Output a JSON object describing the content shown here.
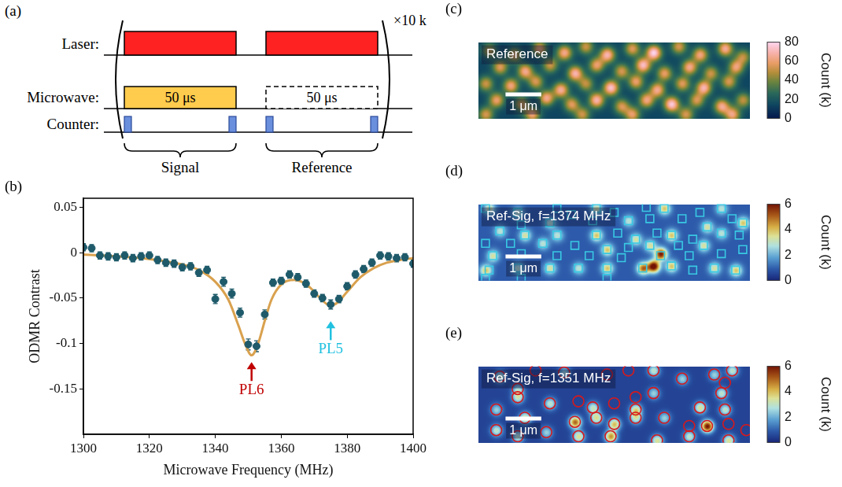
{
  "sequence": {
    "panel": "(a)",
    "rows": [
      "Laser:",
      "Microwave:",
      "Counter:"
    ],
    "pulse_labels": [
      "50 μs",
      "50 μs"
    ],
    "repeat": "×10 k",
    "windows": [
      "Signal",
      "Reference"
    ]
  },
  "chart_data": [
    {
      "panel": "(b)",
      "type": "scatter",
      "x_label": "Microwave Frequency (MHz)",
      "y_label": "ODMR Contrast",
      "xlim": [
        1300,
        1400
      ],
      "xticks": [
        1300,
        1320,
        1340,
        1360,
        1380,
        1400
      ],
      "ylim": [
        -0.2,
        0.06
      ],
      "yticks": [
        -0.15,
        -0.1,
        -0.05,
        0,
        0.05
      ],
      "grid": false,
      "series": [
        {
          "type": "scatter",
          "marker": "circle",
          "color": "#1e5a6a",
          "x": [
            1300,
            1302.5,
            1305,
            1307.5,
            1310,
            1312.5,
            1315,
            1317.5,
            1320,
            1322.5,
            1325,
            1327.5,
            1330,
            1332.5,
            1335,
            1337.5,
            1340,
            1342.5,
            1345,
            1347.5,
            1350,
            1352.5,
            1355,
            1357.5,
            1360,
            1362.5,
            1365,
            1367.5,
            1370,
            1372.5,
            1375,
            1377.5,
            1380,
            1382.5,
            1385,
            1387.5,
            1390,
            1392.5,
            1395,
            1397.5,
            1400
          ],
          "values": [
            0.006,
            0.005,
            -0.003,
            -0.004,
            -0.005,
            -0.003,
            -0.006,
            -0.004,
            -0.003,
            -0.008,
            -0.011,
            -0.012,
            -0.016,
            -0.015,
            -0.022,
            -0.019,
            -0.051,
            -0.032,
            -0.045,
            -0.066,
            -0.101,
            -0.103,
            -0.068,
            -0.033,
            -0.031,
            -0.024,
            -0.027,
            -0.034,
            -0.045,
            -0.05,
            -0.057,
            -0.051,
            -0.037,
            -0.024,
            -0.018,
            -0.011,
            -0.003,
            -0.004,
            -0.006,
            -0.005,
            -0.012
          ],
          "error": [
            0.004,
            0.004,
            0.004,
            0.004,
            0.004,
            0.004,
            0.004,
            0.004,
            0.004,
            0.004,
            0.004,
            0.004,
            0.004,
            0.004,
            0.004,
            0.004,
            0.005,
            0.005,
            0.005,
            0.005,
            0.006,
            0.006,
            0.005,
            0.004,
            0.004,
            0.004,
            0.004,
            0.004,
            0.004,
            0.004,
            0.005,
            0.004,
            0.004,
            0.004,
            0.004,
            0.004,
            0.004,
            0.004,
            0.004,
            0.004,
            0.004
          ]
        },
        {
          "type": "line",
          "line_style": "solid",
          "color": "#d9a14e",
          "x": [
            1300,
            1310,
            1320,
            1330,
            1335,
            1340,
            1344,
            1347,
            1349,
            1351,
            1353,
            1355,
            1357,
            1360,
            1364,
            1368,
            1371,
            1374,
            1375,
            1377,
            1380,
            1384,
            1388,
            1392,
            1396,
            1400
          ],
          "values": [
            -0.002,
            -0.004,
            -0.007,
            -0.013,
            -0.019,
            -0.032,
            -0.052,
            -0.08,
            -0.1,
            -0.113,
            -0.1,
            -0.075,
            -0.052,
            -0.035,
            -0.03,
            -0.036,
            -0.047,
            -0.057,
            -0.058,
            -0.055,
            -0.043,
            -0.027,
            -0.017,
            -0.011,
            -0.008,
            -0.006
          ]
        }
      ],
      "annotations": [
        {
          "text": "PL6",
          "x": 1351,
          "y": -0.143,
          "color": "#c00000"
        },
        {
          "text": "PL5",
          "x": 1375,
          "y": -0.098,
          "color": "#22c1e0"
        }
      ]
    },
    {
      "panel": "(c)",
      "type": "heatmap",
      "title": "Reference",
      "tick_labels": false,
      "xlim": [
        0,
        7.6
      ],
      "ylim": [
        0,
        3.7
      ],
      "scale_bar": {
        "length": 1,
        "label": "1 μm"
      },
      "background": 14,
      "spots": [
        [
          0.3,
          3.3,
          35
        ],
        [
          1.0,
          3.1,
          40
        ],
        [
          1.7,
          3.4,
          45
        ],
        [
          2.4,
          3.2,
          50
        ],
        [
          3.0,
          3.5,
          38
        ],
        [
          3.6,
          3.1,
          55
        ],
        [
          4.3,
          3.4,
          42
        ],
        [
          4.9,
          3.2,
          65
        ],
        [
          5.6,
          3.5,
          40
        ],
        [
          6.2,
          3.1,
          48
        ],
        [
          6.9,
          3.4,
          52
        ],
        [
          7.4,
          3.0,
          35
        ],
        [
          0.6,
          2.5,
          42
        ],
        [
          1.3,
          2.3,
          50
        ],
        [
          2.0,
          2.6,
          38
        ],
        [
          2.7,
          2.2,
          55
        ],
        [
          3.3,
          2.6,
          45
        ],
        [
          4.0,
          2.3,
          40
        ],
        [
          4.6,
          2.6,
          58
        ],
        [
          5.2,
          2.2,
          44
        ],
        [
          5.9,
          2.5,
          50
        ],
        [
          6.5,
          2.2,
          38
        ],
        [
          7.2,
          2.5,
          46
        ],
        [
          0.2,
          1.7,
          38
        ],
        [
          0.9,
          1.6,
          48
        ],
        [
          1.6,
          1.8,
          40
        ],
        [
          2.3,
          1.4,
          52
        ],
        [
          3.0,
          1.7,
          36
        ],
        [
          3.7,
          1.5,
          60
        ],
        [
          4.4,
          1.8,
          45
        ],
        [
          5.0,
          1.4,
          50
        ],
        [
          5.7,
          1.7,
          42
        ],
        [
          6.3,
          1.5,
          55
        ],
        [
          7.0,
          1.8,
          40
        ],
        [
          0.5,
          0.9,
          45
        ],
        [
          1.2,
          0.7,
          38
        ],
        [
          1.9,
          1.0,
          50
        ],
        [
          2.6,
          0.7,
          42
        ],
        [
          3.3,
          0.9,
          55
        ],
        [
          4.0,
          0.6,
          40
        ],
        [
          4.7,
          0.9,
          48
        ],
        [
          5.4,
          0.7,
          62
        ],
        [
          6.1,
          0.9,
          40
        ],
        [
          6.8,
          0.6,
          50
        ],
        [
          7.4,
          0.9,
          36
        ],
        [
          0.2,
          0.2,
          40
        ],
        [
          1.5,
          0.2,
          46
        ],
        [
          2.9,
          0.2,
          38
        ],
        [
          4.3,
          0.2,
          44
        ],
        [
          5.8,
          0.2,
          40
        ],
        [
          7.1,
          0.2,
          48
        ]
      ],
      "colorbar": {
        "label": "Count (k)",
        "range": [
          0,
          80
        ],
        "ticks": [
          0,
          20,
          40,
          60,
          80
        ]
      }
    },
    {
      "panel": "(d)",
      "type": "heatmap",
      "title": "Ref-Sig, f=1374 MHz",
      "tick_labels": false,
      "xlim": [
        0,
        7.6
      ],
      "ylim": [
        0,
        3.7
      ],
      "scale_bar": {
        "length": 1,
        "label": "1 μm"
      },
      "background": 0.9,
      "spots": [
        [
          0.2,
          0.5,
          3
        ],
        [
          0.4,
          1.2,
          2.5
        ],
        [
          1.1,
          0.6,
          2
        ],
        [
          2.0,
          0.6,
          2.5
        ],
        [
          2.8,
          0.6,
          2
        ],
        [
          3.6,
          0.6,
          3
        ],
        [
          4.6,
          0.6,
          4
        ],
        [
          4.9,
          0.7,
          5.5
        ],
        [
          5.1,
          1.3,
          5
        ],
        [
          5.4,
          0.7,
          3
        ],
        [
          6.6,
          0.6,
          2.5
        ],
        [
          7.2,
          0.5,
          3
        ],
        [
          0.6,
          2.4,
          2
        ],
        [
          1.3,
          2.2,
          2.5
        ],
        [
          2.2,
          2.2,
          2
        ],
        [
          3.3,
          2.2,
          3
        ],
        [
          4.4,
          2.0,
          2.5
        ],
        [
          5.4,
          2.2,
          3
        ],
        [
          6.8,
          2.3,
          2
        ],
        [
          1.8,
          1.8,
          2
        ],
        [
          3.6,
          1.5,
          3
        ],
        [
          4.8,
          1.7,
          2.5
        ],
        [
          6.3,
          1.7,
          2.5
        ],
        [
          1.1,
          3.3,
          2
        ],
        [
          3.3,
          3.5,
          2.5
        ],
        [
          5.2,
          3.5,
          3
        ],
        [
          6.8,
          3.5,
          2
        ],
        [
          7.4,
          2.8,
          3
        ],
        [
          2.0,
          2.8,
          2
        ],
        [
          0.3,
          3.5,
          2.5
        ],
        [
          4.2,
          2.9,
          2
        ],
        [
          6.4,
          2.6,
          2.5
        ]
      ],
      "markers": {
        "marker": "square",
        "color": "#39c9e3",
        "points": [
          [
            0.2,
            3.5
          ],
          [
            1.1,
            3.3
          ],
          [
            2.2,
            3.5
          ],
          [
            2.6,
            3.2
          ],
          [
            3.3,
            3.5
          ],
          [
            3.8,
            3.3
          ],
          [
            4.7,
            3.55
          ],
          [
            5.2,
            3.5
          ],
          [
            6.2,
            3.3
          ],
          [
            6.8,
            3.5
          ],
          [
            7.1,
            3.0
          ],
          [
            7.4,
            2.8
          ],
          [
            5.7,
            3.0
          ],
          [
            6.4,
            2.6
          ],
          [
            4.8,
            3.0
          ],
          [
            4.2,
            2.9
          ],
          [
            3.2,
            2.9
          ],
          [
            2.0,
            2.8
          ],
          [
            1.2,
            2.7
          ],
          [
            0.6,
            2.4
          ],
          [
            1.3,
            2.2
          ],
          [
            2.2,
            2.2
          ],
          [
            3.3,
            2.2
          ],
          [
            3.9,
            2.3
          ],
          [
            4.4,
            2.0
          ],
          [
            5.0,
            2.3
          ],
          [
            5.4,
            2.2
          ],
          [
            6.0,
            2.0
          ],
          [
            6.8,
            2.3
          ],
          [
            7.3,
            2.2
          ],
          [
            0.2,
            1.8
          ],
          [
            0.9,
            1.8
          ],
          [
            1.8,
            1.8
          ],
          [
            2.7,
            1.7
          ],
          [
            3.6,
            1.5
          ],
          [
            4.2,
            1.6
          ],
          [
            4.8,
            1.7
          ],
          [
            5.6,
            1.7
          ],
          [
            6.3,
            1.7
          ],
          [
            0.4,
            1.2
          ],
          [
            1.2,
            1.3
          ],
          [
            2.2,
            1.2
          ],
          [
            3.1,
            1.2
          ],
          [
            4.0,
            1.1
          ],
          [
            5.1,
            1.2
          ],
          [
            5.9,
            1.2
          ],
          [
            6.8,
            1.3
          ],
          [
            7.4,
            1.5
          ],
          [
            0.3,
            0.5
          ],
          [
            1.1,
            0.6
          ],
          [
            2.0,
            0.6
          ],
          [
            2.8,
            0.6
          ],
          [
            3.6,
            0.6
          ],
          [
            4.6,
            0.6
          ],
          [
            5.4,
            0.7
          ],
          [
            6.0,
            0.5
          ],
          [
            7.2,
            0.5
          ],
          [
            6.6,
            0.6
          ],
          [
            0.2,
            0.1
          ],
          [
            1.2,
            0.1
          ],
          [
            3.6,
            0.1
          ]
        ]
      },
      "colorbar": {
        "label": "Count (k)",
        "range": [
          0,
          6
        ],
        "ticks": [
          0,
          2,
          4,
          6
        ]
      }
    },
    {
      "panel": "(e)",
      "type": "heatmap",
      "title": "Ref-Sig, f=1351 MHz",
      "tick_labels": false,
      "xlim": [
        0,
        7.6
      ],
      "ylim": [
        0,
        3.7
      ],
      "scale_bar": {
        "length": 1,
        "label": "1 μm"
      },
      "background": 0.5,
      "spots": [
        [
          2.7,
          1.0,
          4.5
        ],
        [
          6.4,
          0.8,
          5.5
        ],
        [
          3.8,
          0.9,
          3.5
        ],
        [
          3.7,
          0.3,
          4
        ],
        [
          1.3,
          1.2,
          3
        ],
        [
          6.2,
          1.7,
          3
        ],
        [
          3.3,
          1.2,
          3
        ],
        [
          1.1,
          0.3,
          2.5
        ],
        [
          2.8,
          0.3,
          3
        ],
        [
          5.0,
          0.1,
          3
        ],
        [
          0.5,
          0.6,
          2.5
        ],
        [
          1.9,
          0.5,
          2
        ],
        [
          5.9,
          0.3,
          2.5
        ],
        [
          7.0,
          0.1,
          3
        ],
        [
          4.4,
          1.2,
          2.5
        ],
        [
          5.2,
          1.2,
          2
        ],
        [
          6.9,
          1.6,
          2.5
        ],
        [
          4.4,
          1.6,
          3
        ],
        [
          3.2,
          1.7,
          2.5
        ],
        [
          2.0,
          1.9,
          2.5
        ],
        [
          0.5,
          1.6,
          2
        ],
        [
          1.1,
          2.2,
          2.5
        ],
        [
          4.9,
          2.4,
          2
        ],
        [
          6.8,
          2.4,
          2.5
        ],
        [
          1.1,
          2.6,
          2
        ],
        [
          0.6,
          3.2,
          2.5
        ],
        [
          2.4,
          3.4,
          2
        ],
        [
          4.9,
          3.5,
          2.5
        ],
        [
          6.6,
          3.3,
          2
        ],
        [
          7.1,
          3.5,
          2.5
        ],
        [
          5.7,
          3.1,
          2
        ]
      ],
      "markers": {
        "marker": "circle",
        "color": "#d7191c",
        "points": [
          [
            0.6,
            3.2
          ],
          [
            1.1,
            2.6
          ],
          [
            1.6,
            3.5
          ],
          [
            2.4,
            3.4
          ],
          [
            3.6,
            3.3
          ],
          [
            4.2,
            3.5
          ],
          [
            4.9,
            3.5
          ],
          [
            5.7,
            3.1
          ],
          [
            6.6,
            3.3
          ],
          [
            7.1,
            3.5
          ],
          [
            1.1,
            2.2
          ],
          [
            0.5,
            1.6
          ],
          [
            2.0,
            1.9
          ],
          [
            2.8,
            2.0
          ],
          [
            3.2,
            1.7
          ],
          [
            3.8,
            1.9
          ],
          [
            4.4,
            2.2
          ],
          [
            4.9,
            2.4
          ],
          [
            4.4,
            1.6
          ],
          [
            6.2,
            1.7
          ],
          [
            6.8,
            2.4
          ],
          [
            6.9,
            2.9
          ],
          [
            6.9,
            1.6
          ],
          [
            1.3,
            1.2
          ],
          [
            2.7,
            1.0
          ],
          [
            3.3,
            1.2
          ],
          [
            3.8,
            0.9
          ],
          [
            4.4,
            1.2
          ],
          [
            5.2,
            1.2
          ],
          [
            5.9,
            0.8
          ],
          [
            6.4,
            0.8
          ],
          [
            7.0,
            0.9
          ],
          [
            0.5,
            0.6
          ],
          [
            1.1,
            0.3
          ],
          [
            1.9,
            0.5
          ],
          [
            2.8,
            0.3
          ],
          [
            3.7,
            0.3
          ],
          [
            5.0,
            0.1
          ],
          [
            5.9,
            0.3
          ],
          [
            7.0,
            0.1
          ],
          [
            7.5,
            0.6
          ]
        ]
      },
      "colorbar": {
        "label": "Count (k)",
        "range": [
          0,
          6
        ],
        "ticks": [
          0,
          2,
          4,
          6
        ]
      }
    }
  ]
}
